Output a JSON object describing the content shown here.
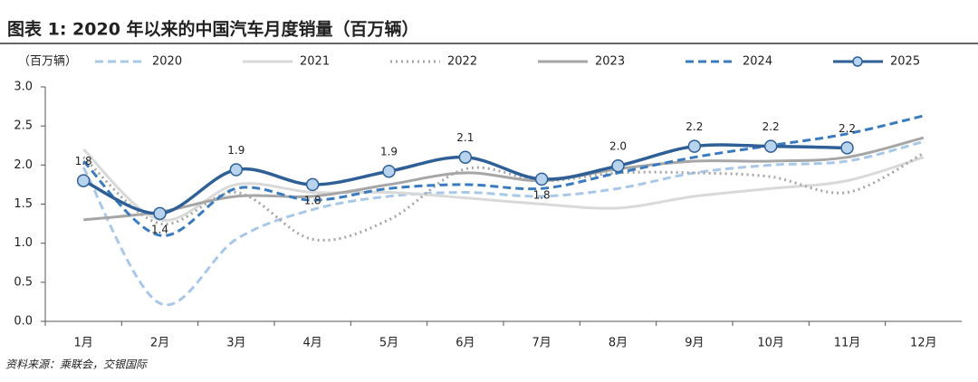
{
  "chart_data": {
    "type": "line",
    "title": "图表 1: 2020 年以来的中国汽车月度销量（百万辆）",
    "unit_label": "（百万辆）",
    "source": "资料来源：乘联会，交银国际",
    "categories": [
      "1月",
      "2月",
      "3月",
      "4月",
      "5月",
      "6月",
      "7月",
      "8月",
      "9月",
      "10月",
      "11月",
      "12月"
    ],
    "ylim": [
      0,
      3.0
    ],
    "yticks": [
      {
        "value": 0,
        "label": "0.0"
      },
      0.5,
      {
        "value": 1,
        "label": "1.0"
      },
      1.5,
      {
        "value": 2,
        "label": "2.0"
      },
      2.5,
      {
        "value": 3,
        "label": "3.0"
      }
    ],
    "series": [
      {
        "name": "2020",
        "color": "#a9c8e8",
        "style": "dashed",
        "values": [
          1.97,
          0.23,
          1.05,
          1.43,
          1.6,
          1.65,
          1.6,
          1.7,
          1.9,
          2.0,
          2.05,
          2.3
        ]
      },
      {
        "name": "2021",
        "color": "#d9d9d9",
        "style": "solid",
        "values": [
          2.2,
          1.3,
          1.75,
          1.65,
          1.65,
          1.58,
          1.5,
          1.45,
          1.6,
          1.7,
          1.8,
          2.1
        ]
      },
      {
        "name": "2022",
        "color": "#a6a6a6",
        "style": "dotted",
        "values": [
          2.1,
          1.25,
          1.65,
          1.05,
          1.3,
          1.95,
          1.8,
          1.9,
          1.9,
          1.85,
          1.65,
          2.15
        ]
      },
      {
        "name": "2023",
        "color": "#a6a6a6",
        "style": "solid",
        "values": [
          1.3,
          1.4,
          1.6,
          1.6,
          1.75,
          1.9,
          1.8,
          1.95,
          2.05,
          2.05,
          2.1,
          2.35
        ]
      },
      {
        "name": "2024",
        "color": "#3a7bc0",
        "style": "dashed",
        "values": [
          2.05,
          1.1,
          1.7,
          1.55,
          1.7,
          1.75,
          1.7,
          1.9,
          2.1,
          2.25,
          2.4,
          2.63
        ]
      },
      {
        "name": "2025",
        "color": "#2e5f96",
        "style": "markers",
        "values": [
          1.8,
          1.38,
          1.94,
          1.75,
          1.92,
          2.1,
          1.82,
          1.99,
          2.24,
          2.24,
          2.22,
          null
        ],
        "value_labels": [
          "1.8",
          "1.4",
          "1.9",
          "1.8",
          "1.9",
          "2.1",
          "1.8",
          "2.0",
          "2.2",
          "2.2",
          "2.2",
          null
        ]
      }
    ]
  }
}
